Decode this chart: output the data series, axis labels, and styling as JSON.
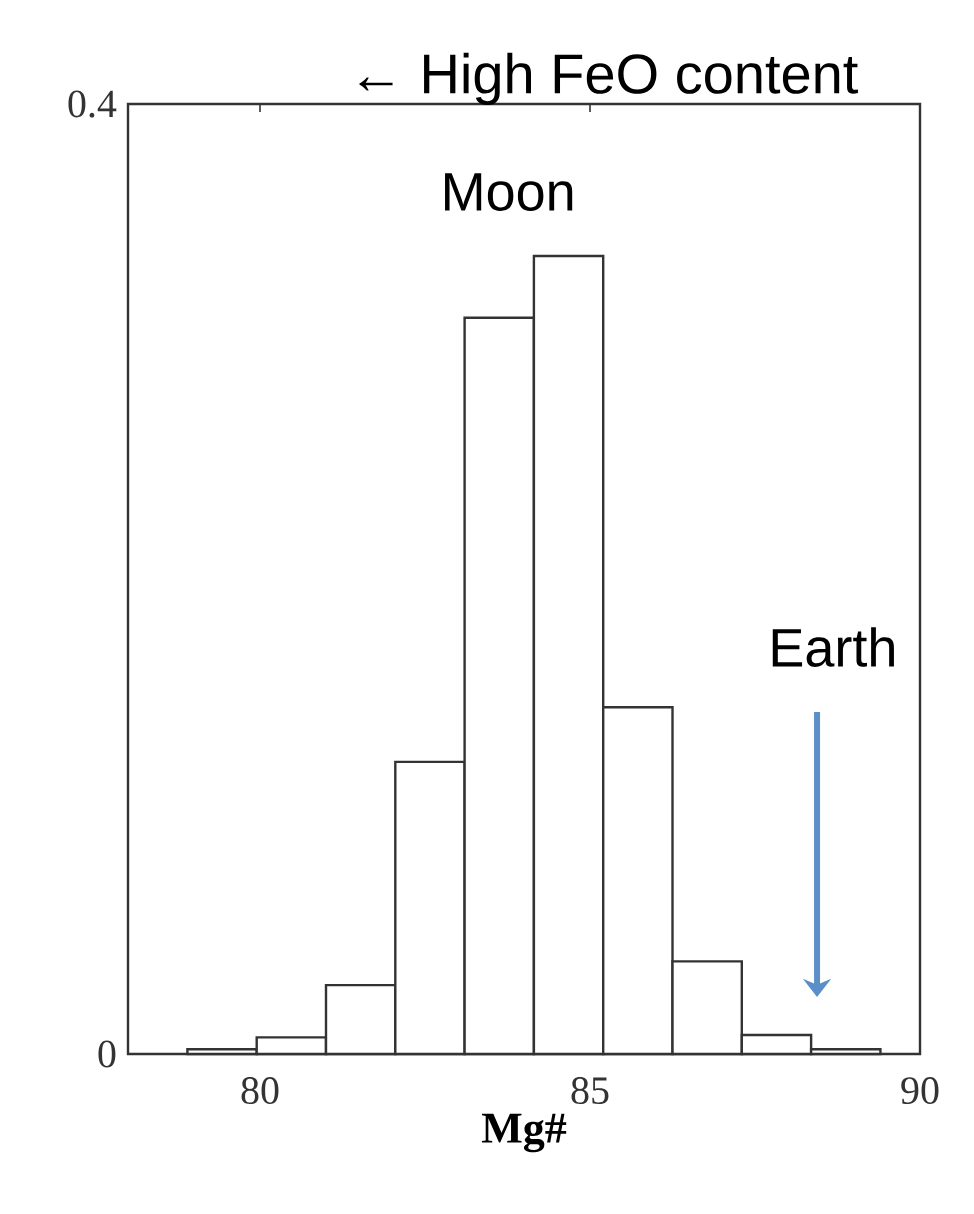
{
  "chart_data": {
    "type": "histogram",
    "title": "← High FeO content",
    "xlabel": "Mg#",
    "bins": [
      78.9,
      79.95,
      81.0,
      82.05,
      83.1,
      84.15,
      85.2,
      86.25,
      87.3,
      88.35,
      89.4
    ],
    "values": [
      0.002,
      0.007,
      0.029,
      0.123,
      0.31,
      0.336,
      0.146,
      0.039,
      0.008,
      0.002
    ],
    "color": "#ffffff",
    "xlim": [
      78,
      90
    ],
    "ylim": [
      0,
      0.4
    ],
    "xticks": [
      80,
      85,
      90
    ],
    "yticks": [
      0,
      0.4
    ],
    "annotations": [
      "Moon",
      "Earth"
    ]
  }
}
